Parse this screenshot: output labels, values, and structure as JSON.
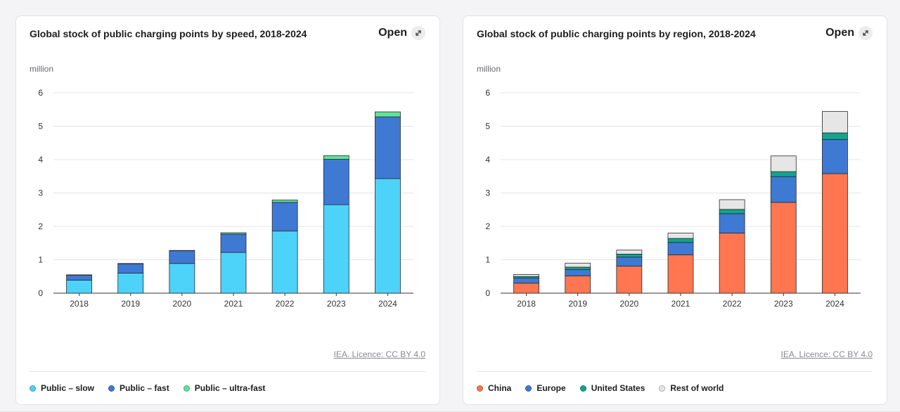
{
  "charts": [
    {
      "card": "left",
      "title": "Global stock of public charging points by speed, 2018-2024",
      "open_label": "Open",
      "unit_label": "million",
      "licence": "IEA. Licence: CC BY 4.0",
      "chart_data": {
        "type": "bar",
        "stacked": true,
        "title": "Global stock of public charging points by speed, 2018-2024",
        "ylabel": "million",
        "xlabel": "",
        "ylim": [
          0,
          6
        ],
        "yticks": [
          0,
          1,
          2,
          3,
          4,
          5,
          6
        ],
        "categories": [
          "2018",
          "2019",
          "2020",
          "2021",
          "2022",
          "2023",
          "2024"
        ],
        "series": [
          {
            "name": "Public – slow",
            "color": "#4dd2fa",
            "values": [
              0.39,
              0.6,
              0.89,
              1.22,
              1.86,
              2.65,
              3.43
            ]
          },
          {
            "name": "Public – fast",
            "color": "#3e79d4",
            "values": [
              0.15,
              0.28,
              0.38,
              0.55,
              0.86,
              1.36,
              1.85
            ]
          },
          {
            "name": "Public – ultra-fast",
            "color": "#5fe39a",
            "values": [
              0.01,
              0.01,
              0.01,
              0.04,
              0.07,
              0.11,
              0.15
            ]
          }
        ],
        "legend_position": "bottom"
      }
    },
    {
      "card": "right",
      "title": "Global stock of public charging points by region, 2018-2024",
      "open_label": "Open",
      "unit_label": "million",
      "licence": "IEA. Licence: CC BY 4.0",
      "chart_data": {
        "type": "bar",
        "stacked": true,
        "title": "Global stock of public charging points by region, 2018-2024",
        "ylabel": "million",
        "xlabel": "",
        "ylim": [
          0,
          6
        ],
        "yticks": [
          0,
          1,
          2,
          3,
          4,
          5,
          6
        ],
        "categories": [
          "2018",
          "2019",
          "2020",
          "2021",
          "2022",
          "2023",
          "2024"
        ],
        "series": [
          {
            "name": "China",
            "color": "#ff7650",
            "values": [
              0.3,
              0.52,
              0.81,
              1.15,
              1.8,
              2.72,
              3.58
            ]
          },
          {
            "name": "Europe",
            "color": "#3e79d4",
            "values": [
              0.15,
              0.19,
              0.27,
              0.37,
              0.58,
              0.77,
              1.02
            ]
          },
          {
            "name": "United States",
            "color": "#12a48d",
            "values": [
              0.05,
              0.07,
              0.09,
              0.12,
              0.13,
              0.15,
              0.2
            ]
          },
          {
            "name": "Rest of world",
            "color": "#e6e6e6",
            "values": [
              0.06,
              0.12,
              0.12,
              0.16,
              0.29,
              0.47,
              0.64
            ]
          }
        ],
        "legend_position": "bottom"
      }
    }
  ]
}
